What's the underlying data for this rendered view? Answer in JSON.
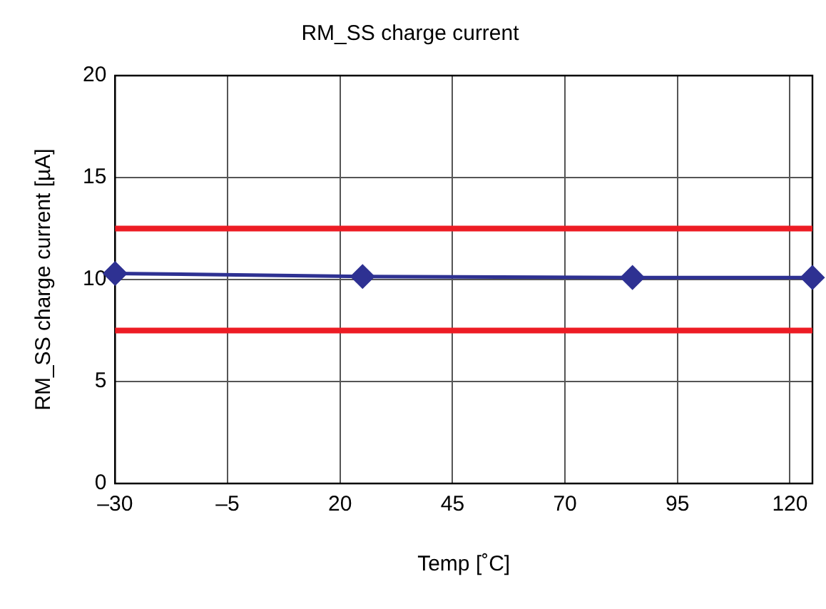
{
  "chart_data": {
    "type": "line",
    "title": "RM_SS charge current",
    "xlabel": "Temp [˚C]",
    "ylabel": "RM_SS charge current [µA]",
    "x": [
      -30,
      25,
      85,
      125
    ],
    "series": [
      {
        "color": "#2e3192",
        "values": [
          10.3,
          10.15,
          10.1,
          10.1
        ]
      }
    ],
    "xlim": [
      -30,
      125
    ],
    "xticks": [
      {
        "value": -30,
        "label": "–30"
      },
      {
        "value": -5,
        "label": "–5"
      },
      20,
      45,
      70,
      95,
      120
    ],
    "ylim": [
      0,
      20
    ],
    "yticks": [
      0,
      5,
      10,
      15,
      20
    ],
    "ref_lines": [
      {
        "axis": "y",
        "value": 12.5,
        "color": "#ed1c24"
      },
      {
        "axis": "y",
        "value": 7.5,
        "color": "#ed1c24"
      }
    ],
    "grid": true,
    "legend": false,
    "marker": "diamond",
    "line_style": "solid"
  }
}
